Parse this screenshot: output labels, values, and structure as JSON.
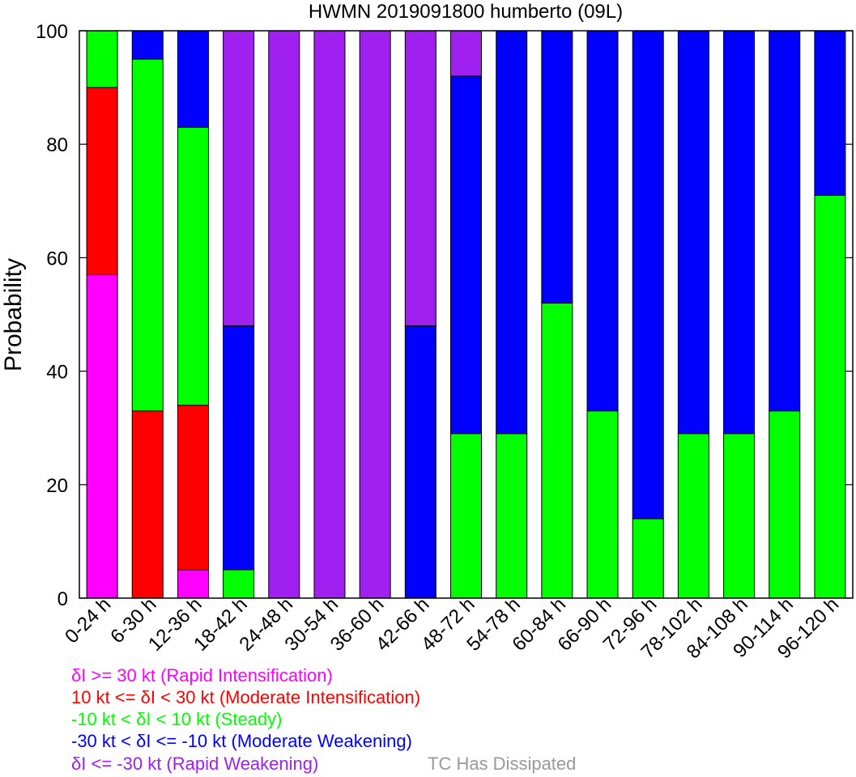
{
  "chart_data": {
    "type": "bar",
    "stacked": true,
    "title": "HWMN 2019091800 humberto (09L)",
    "ylabel": "Probability",
    "ylim": [
      0,
      100
    ],
    "yticks": [
      0,
      20,
      40,
      60,
      80,
      100
    ],
    "grid": false,
    "categories": [
      "0-24 h",
      "6-30 h",
      "12-36 h",
      "18-42 h",
      "24-48 h",
      "30-54 h",
      "36-60 h",
      "42-66 h",
      "48-72 h",
      "54-78 h",
      "60-84 h",
      "66-90 h",
      "72-96 h",
      "78-102 h",
      "84-108 h",
      "90-114 h",
      "96-120 h"
    ],
    "series": [
      {
        "name": "δI >= 30 kt (Rapid Intensification)",
        "color": "#ff00ff",
        "values": [
          57,
          0,
          5,
          0,
          0,
          0,
          0,
          0,
          0,
          0,
          0,
          0,
          0,
          0,
          0,
          0,
          0
        ]
      },
      {
        "name": "10 kt <= δI < 30 kt (Moderate Intensification)",
        "color": "#ff0000",
        "values": [
          33,
          33,
          29,
          0,
          0,
          0,
          0,
          0,
          0,
          0,
          0,
          0,
          0,
          0,
          0,
          0,
          0
        ]
      },
      {
        "name": "-10 kt < δI < 10 kt (Steady)",
        "color": "#00ff00",
        "values": [
          10,
          62,
          49,
          5,
          0,
          0,
          0,
          0,
          29,
          29,
          52,
          33,
          14,
          29,
          29,
          33,
          71
        ]
      },
      {
        "name": "-30 kt < δI <= -10 kt (Moderate Weakening)",
        "color": "#0000ff",
        "values": [
          0,
          5,
          17,
          43,
          0,
          0,
          0,
          48,
          63,
          71,
          48,
          67,
          86,
          71,
          71,
          67,
          29
        ]
      },
      {
        "name": "δI <= -30 kt (Rapid Weakening)",
        "color": "#a020f0",
        "values": [
          0,
          0,
          0,
          52,
          100,
          100,
          100,
          52,
          8,
          0,
          0,
          0,
          0,
          0,
          0,
          0,
          0
        ]
      },
      {
        "name": "TC Has Dissipated",
        "color": "#999999",
        "values": [
          0,
          0,
          0,
          0,
          0,
          0,
          0,
          0,
          0,
          0,
          0,
          0,
          0,
          0,
          0,
          0,
          0
        ]
      }
    ],
    "legend_placement": "bottom-left"
  }
}
